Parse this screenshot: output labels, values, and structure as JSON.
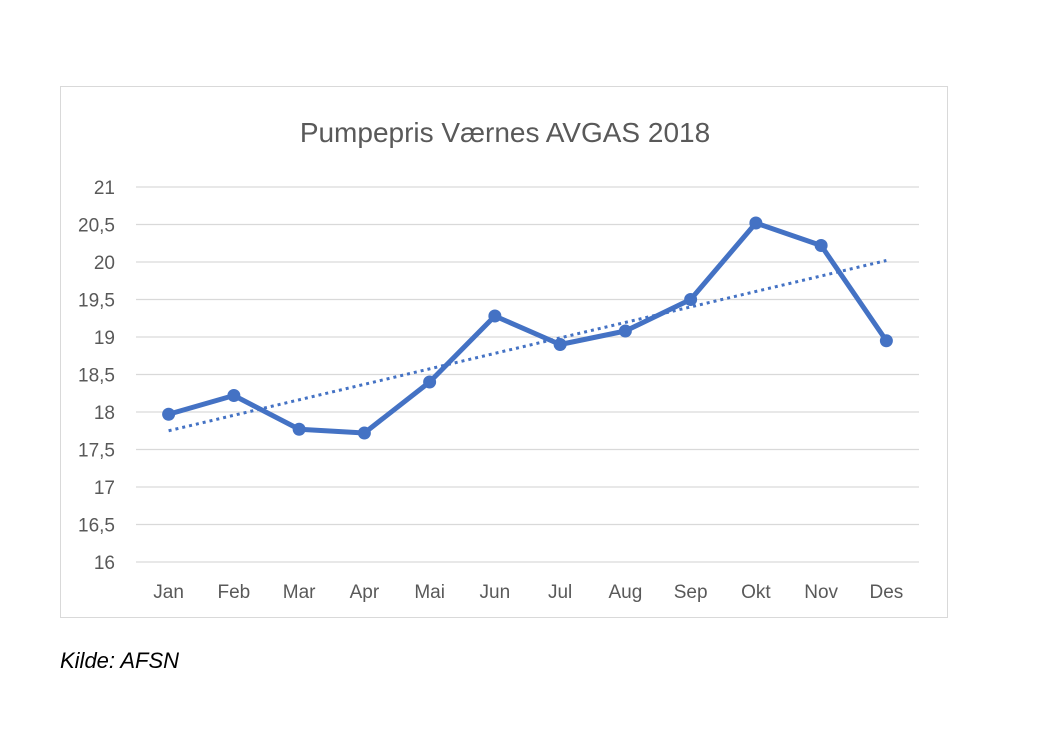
{
  "chart_data": {
    "type": "line",
    "title": "Pumpepris  Værnes AVGAS 2018",
    "xlabel": "",
    "ylabel": "",
    "categories": [
      "Jan",
      "Feb",
      "Mar",
      "Apr",
      "Mai",
      "Jun",
      "Jul",
      "Aug",
      "Sep",
      "Okt",
      "Nov",
      "Des"
    ],
    "series": [
      {
        "values": [
          17.97,
          18.22,
          17.77,
          17.72,
          18.4,
          19.28,
          18.9,
          19.08,
          19.5,
          20.52,
          20.22,
          18.95
        ],
        "color": "#4472c4"
      }
    ],
    "trendline": {
      "type": "linear",
      "start": 17.75,
      "end": 20.02,
      "style": "dotted",
      "color": "#4472c4"
    },
    "ylim": [
      16,
      21
    ],
    "yticks": [
      16,
      16.5,
      17,
      17.5,
      18,
      18.5,
      19,
      19.5,
      20,
      20.5,
      21
    ],
    "ytick_labels": [
      "16",
      "16,5",
      "17",
      "17,5",
      "18",
      "18,5",
      "19",
      "19,5",
      "20",
      "20,5",
      "21"
    ],
    "grid": true,
    "legend": "none"
  },
  "source": "Kilde: AFSN"
}
